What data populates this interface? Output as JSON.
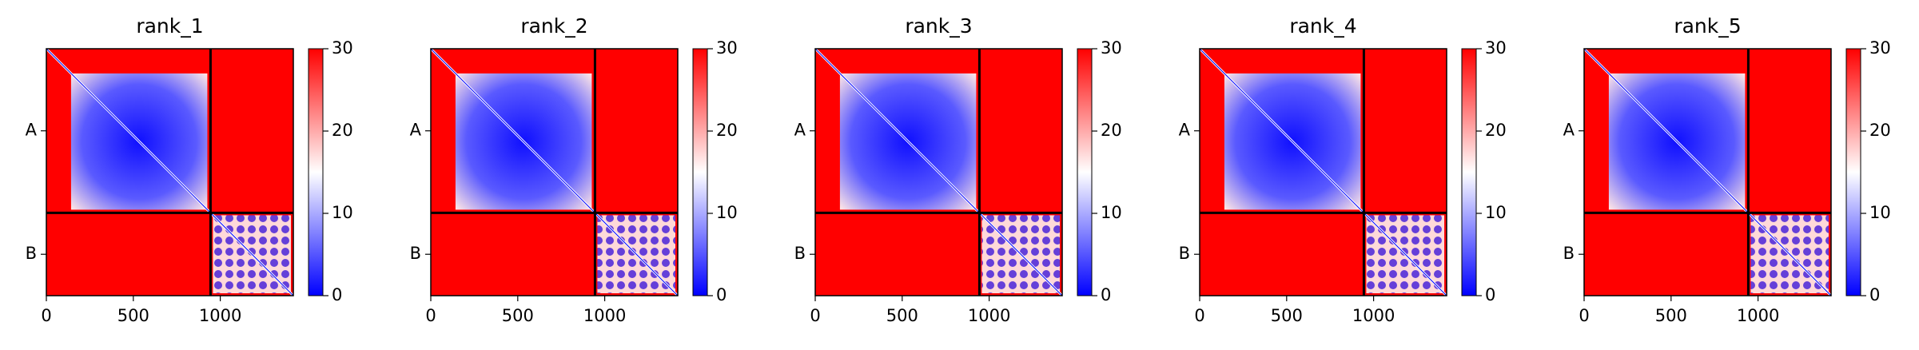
{
  "chart_data": [
    {
      "type": "heatmap",
      "title": "rank_1",
      "xlim": [
        0,
        1420
      ],
      "ylim": [
        1420,
        0
      ],
      "xticks": [
        0,
        500,
        1000
      ],
      "yticks": [
        {
          "value": 472,
          "label": "A"
        },
        {
          "value": 1182,
          "label": "B"
        }
      ],
      "chain_boundary": 944,
      "clim": [
        0,
        30
      ],
      "cticks": [
        0,
        10,
        20,
        30
      ],
      "colormap": [
        "#0000ff",
        "#ffffff",
        "#ff0000"
      ]
    },
    {
      "type": "heatmap",
      "title": "rank_2",
      "xlim": [
        0,
        1420
      ],
      "ylim": [
        1420,
        0
      ],
      "xticks": [
        0,
        500,
        1000
      ],
      "yticks": [
        {
          "value": 472,
          "label": "A"
        },
        {
          "value": 1182,
          "label": "B"
        }
      ],
      "chain_boundary": 944,
      "clim": [
        0,
        30
      ],
      "cticks": [
        0,
        10,
        20,
        30
      ],
      "colormap": [
        "#0000ff",
        "#ffffff",
        "#ff0000"
      ]
    },
    {
      "type": "heatmap",
      "title": "rank_3",
      "xlim": [
        0,
        1420
      ],
      "ylim": [
        1420,
        0
      ],
      "xticks": [
        0,
        500,
        1000
      ],
      "yticks": [
        {
          "value": 472,
          "label": "A"
        },
        {
          "value": 1182,
          "label": "B"
        }
      ],
      "chain_boundary": 944,
      "clim": [
        0,
        30
      ],
      "cticks": [
        0,
        10,
        20,
        30
      ],
      "colormap": [
        "#0000ff",
        "#ffffff",
        "#ff0000"
      ]
    },
    {
      "type": "heatmap",
      "title": "rank_4",
      "xlim": [
        0,
        1420
      ],
      "ylim": [
        1420,
        0
      ],
      "xticks": [
        0,
        500,
        1000
      ],
      "yticks": [
        {
          "value": 472,
          "label": "A"
        },
        {
          "value": 1182,
          "label": "B"
        }
      ],
      "chain_boundary": 944,
      "clim": [
        0,
        30
      ],
      "cticks": [
        0,
        10,
        20,
        30
      ],
      "colormap": [
        "#0000ff",
        "#ffffff",
        "#ff0000"
      ]
    },
    {
      "type": "heatmap",
      "title": "rank_5",
      "xlim": [
        0,
        1420
      ],
      "ylim": [
        1420,
        0
      ],
      "xticks": [
        0,
        500,
        1000
      ],
      "yticks": [
        {
          "value": 472,
          "label": "A"
        },
        {
          "value": 1182,
          "label": "B"
        }
      ],
      "chain_boundary": 944,
      "clim": [
        0,
        30
      ],
      "cticks": [
        0,
        10,
        20,
        30
      ],
      "colormap": [
        "#0000ff",
        "#ffffff",
        "#ff0000"
      ]
    }
  ]
}
